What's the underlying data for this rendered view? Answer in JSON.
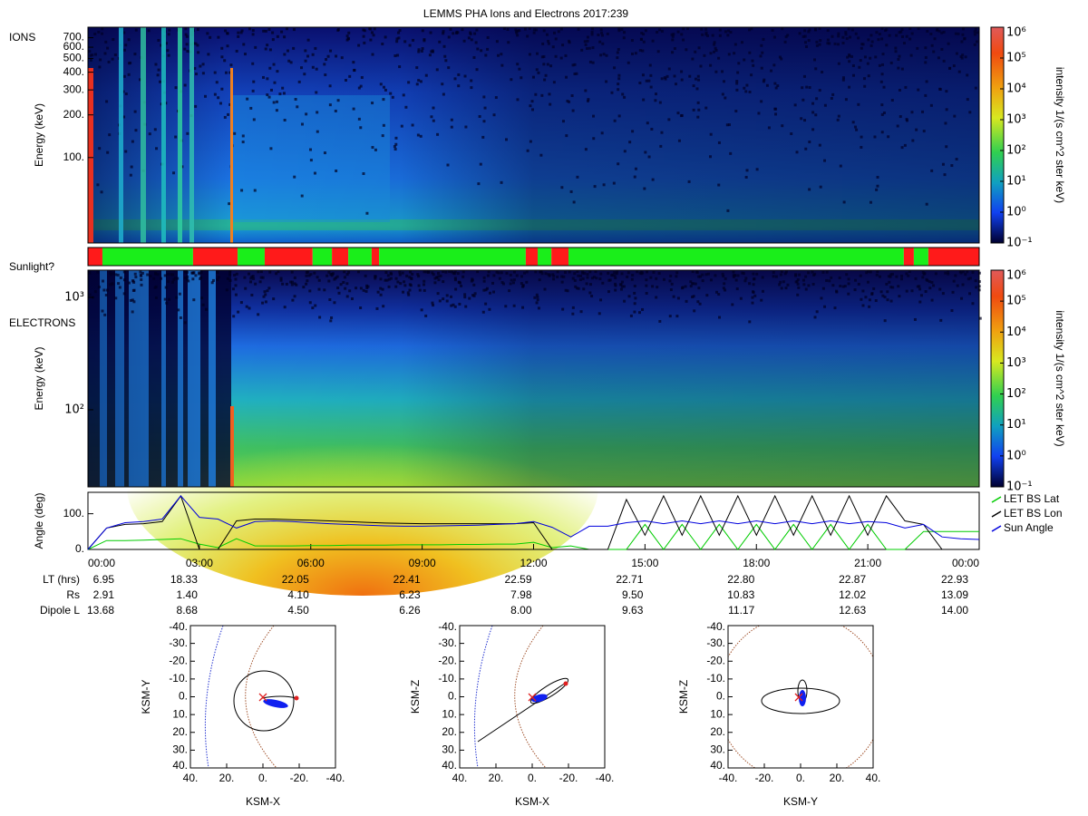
{
  "title": "LEMMS PHA Ions and Electrons  2017:239",
  "chart_data": [
    {
      "type": "heatmap",
      "annotation": "IONS",
      "y_label": "Energy (keV)",
      "ylog": true,
      "ylim": [
        25,
        830
      ],
      "yticks": [
        {
          "value": 100,
          "label": "100."
        },
        {
          "value": 200,
          "label": "200."
        },
        {
          "value": 300,
          "label": "300."
        },
        {
          "value": 400,
          "label": "400."
        },
        {
          "value": 500,
          "label": "500."
        },
        {
          "value": 600,
          "label": "600."
        },
        {
          "value": 700,
          "label": "700."
        }
      ],
      "colorbar": {
        "label": "intensity 1/(s cm^2 ster keV)",
        "zlog": true,
        "zlim": [
          0.1,
          1000000
        ],
        "zticks": [
          {
            "value": 0.1,
            "label": "10⁻¹"
          },
          {
            "value": 1,
            "label": "10⁰"
          },
          {
            "value": 10,
            "label": "10¹"
          },
          {
            "value": 100,
            "label": "10²"
          },
          {
            "value": 1000,
            "label": "10³"
          },
          {
            "value": 10000,
            "label": "10⁴"
          },
          {
            "value": 100000,
            "label": "10⁵"
          },
          {
            "value": 1000000,
            "label": "10⁶"
          }
        ]
      }
    },
    {
      "type": "timeline",
      "annotation": "Sunlight?",
      "segments": [
        {
          "start": 0,
          "end": 0.39,
          "color": "#ff1a1a"
        },
        {
          "start": 0.39,
          "end": 2.83,
          "color": "#1aee1a"
        },
        {
          "start": 2.83,
          "end": 4.03,
          "color": "#ff1a1a"
        },
        {
          "start": 4.03,
          "end": 4.76,
          "color": "#1aee1a"
        },
        {
          "start": 4.76,
          "end": 6.05,
          "color": "#ff1a1a"
        },
        {
          "start": 6.05,
          "end": 6.57,
          "color": "#1aee1a"
        },
        {
          "start": 6.57,
          "end": 7.01,
          "color": "#ff1a1a"
        },
        {
          "start": 7.01,
          "end": 7.64,
          "color": "#1aee1a"
        },
        {
          "start": 7.64,
          "end": 7.84,
          "color": "#ff1a1a"
        },
        {
          "start": 7.84,
          "end": 11.79,
          "color": "#1aee1a"
        },
        {
          "start": 11.79,
          "end": 12.11,
          "color": "#ff1a1a"
        },
        {
          "start": 12.11,
          "end": 12.48,
          "color": "#1aee1a"
        },
        {
          "start": 12.48,
          "end": 12.94,
          "color": "#ff1a1a"
        },
        {
          "start": 12.94,
          "end": 21.97,
          "color": "#1aee1a"
        },
        {
          "start": 21.97,
          "end": 22.24,
          "color": "#ff1a1a"
        },
        {
          "start": 22.24,
          "end": 22.63,
          "color": "#1aee1a"
        },
        {
          "start": 22.63,
          "end": 24,
          "color": "#ff1a1a"
        }
      ]
    },
    {
      "type": "heatmap",
      "annotation": "ELECTRONS",
      "y_label": "Energy (keV)",
      "ylog": true,
      "ylim": [
        20.6,
        1746
      ],
      "yticks": [
        {
          "value": 100,
          "label": "10²"
        },
        {
          "value": 1000,
          "label": "10³"
        }
      ],
      "colorbar": {
        "label": "intensity 1/(s cm^2 ster keV)",
        "zlog": true,
        "zlim": [
          0.1,
          1000000
        ],
        "zticks": [
          {
            "value": 0.1,
            "label": "10⁻¹"
          },
          {
            "value": 1,
            "label": "10⁰"
          },
          {
            "value": 10,
            "label": "10¹"
          },
          {
            "value": 100,
            "label": "10²"
          },
          {
            "value": 1000,
            "label": "10³"
          },
          {
            "value": 10000,
            "label": "10⁴"
          },
          {
            "value": 100000,
            "label": "10⁵"
          },
          {
            "value": 1000000,
            "label": "10⁶"
          }
        ]
      }
    },
    {
      "type": "line",
      "y_label": "Angle (deg)",
      "legend": "right",
      "xlim": [
        0,
        24
      ],
      "ylim": [
        0,
        160
      ],
      "xticks": [
        {
          "value": 0,
          "label": "00:00"
        },
        {
          "value": 3,
          "label": "03:00"
        },
        {
          "value": 6,
          "label": "06:00"
        },
        {
          "value": 9,
          "label": "09:00"
        },
        {
          "value": 12,
          "label": "12:00"
        },
        {
          "value": 15,
          "label": "15:00"
        },
        {
          "value": 18,
          "label": "18:00"
        },
        {
          "value": 21,
          "label": "21:00"
        },
        {
          "value": 24,
          "label": "00:00"
        }
      ],
      "yticks": [
        {
          "value": 0,
          "label": "0."
        },
        {
          "value": 100,
          "label": "100."
        }
      ],
      "x": [
        0,
        0.5,
        1,
        1.5,
        2,
        2.5,
        3,
        3.5,
        4,
        4.5,
        5,
        5.5,
        6,
        6.5,
        7,
        7.5,
        8,
        8.5,
        9,
        9.5,
        10,
        10.5,
        11,
        11.5,
        12,
        12.5,
        13,
        13.5,
        14,
        14.5,
        15,
        15.5,
        16,
        16.5,
        17,
        17.5,
        18,
        18.5,
        19,
        19.5,
        20,
        20.5,
        21,
        21.5,
        22,
        22.5,
        23,
        23.5,
        24
      ],
      "series": [
        {
          "name": "LET BS Lat",
          "color": "#00cc00",
          "values": [
            0,
            25,
            25,
            26,
            28,
            30,
            15,
            5,
            30,
            10,
            10,
            10,
            11,
            11,
            12,
            12,
            12,
            13,
            13,
            13,
            14,
            14,
            15,
            15,
            20,
            5,
            10,
            0,
            0,
            0,
            70,
            0,
            70,
            0,
            70,
            0,
            70,
            0,
            70,
            0,
            70,
            0,
            70,
            0,
            0,
            50,
            50,
            50,
            50
          ]
        },
        {
          "name": "LET BS Lon",
          "color": "#000000",
          "values": [
            0,
            60,
            70,
            72,
            78,
            150,
            0,
            0,
            80,
            85,
            85,
            83,
            82,
            80,
            78,
            76,
            74,
            73,
            72,
            72,
            72,
            72,
            72,
            72,
            75,
            0,
            0,
            0,
            0,
            140,
            40,
            150,
            40,
            150,
            40,
            150,
            40,
            150,
            40,
            150,
            40,
            150,
            40,
            150,
            80,
            70,
            0,
            0,
            0
          ]
        },
        {
          "name": "Sun Angle",
          "color": "#0000dd",
          "values": [
            0,
            60,
            75,
            78,
            85,
            150,
            90,
            85,
            60,
            78,
            80,
            78,
            75,
            72,
            70,
            68,
            66,
            65,
            65,
            66,
            67,
            68,
            70,
            72,
            78,
            62,
            35,
            65,
            65,
            75,
            80,
            72,
            80,
            72,
            80,
            72,
            80,
            72,
            80,
            72,
            80,
            72,
            78,
            75,
            60,
            70,
            35,
            30,
            28
          ]
        }
      ]
    }
  ],
  "ephemeris": {
    "rows": [
      {
        "label": "LT (hrs)",
        "values": [
          "6.95",
          "18.33",
          "22.05",
          "22.41",
          "22.59",
          "22.71",
          "22.80",
          "22.87",
          "22.93"
        ]
      },
      {
        "label": "Rs",
        "values": [
          "2.91",
          "1.40",
          "4.10",
          "6.23",
          "7.98",
          "9.50",
          "10.83",
          "12.02",
          "13.09"
        ]
      },
      {
        "label": "Dipole L",
        "values": [
          "13.68",
          "8.68",
          "4.50",
          "6.26",
          "8.00",
          "9.63",
          "11.17",
          "12.63",
          "14.00"
        ]
      }
    ]
  },
  "orbit_plots": [
    {
      "x_label": "KSM-X",
      "y_label": "KSM-Y",
      "xlim": [
        40,
        -40
      ],
      "ylim": [
        40,
        -40
      ],
      "xticks": [
        {
          "value": 40,
          "label": "40."
        },
        {
          "value": 20,
          "label": "20."
        },
        {
          "value": 0,
          "label": "0."
        },
        {
          "value": -20,
          "label": "-20."
        },
        {
          "value": -40,
          "label": "-40."
        }
      ],
      "yticks": [
        {
          "value": -40,
          "label": "-40."
        },
        {
          "value": -30,
          "label": "-30."
        },
        {
          "value": -20,
          "label": "-20."
        },
        {
          "value": -10,
          "label": "-10."
        },
        {
          "value": 0,
          "label": "0."
        },
        {
          "value": 10,
          "label": "10."
        },
        {
          "value": 20,
          "label": "20."
        },
        {
          "value": 30,
          "label": "30."
        },
        {
          "value": 40,
          "label": "40."
        }
      ]
    },
    {
      "x_label": "KSM-X",
      "y_label": "KSM-Z",
      "xlim": [
        40,
        -40
      ],
      "ylim": [
        40,
        -40
      ],
      "xticks": [
        {
          "value": 40,
          "label": "40."
        },
        {
          "value": 20,
          "label": "20."
        },
        {
          "value": 0,
          "label": "0."
        },
        {
          "value": -20,
          "label": "-20."
        },
        {
          "value": -40,
          "label": "-40."
        }
      ],
      "yticks": [
        {
          "value": -40,
          "label": "-40."
        },
        {
          "value": -30,
          "label": "-30."
        },
        {
          "value": -20,
          "label": "-20."
        },
        {
          "value": -10,
          "label": "-10."
        },
        {
          "value": 0,
          "label": "0."
        },
        {
          "value": 10,
          "label": "10."
        },
        {
          "value": 20,
          "label": "20."
        },
        {
          "value": 30,
          "label": "30."
        },
        {
          "value": 40,
          "label": "40."
        }
      ]
    },
    {
      "x_label": "KSM-Y",
      "y_label": "KSM-Z",
      "xlim": [
        -40,
        40
      ],
      "ylim": [
        40,
        -40
      ],
      "xticks": [
        {
          "value": -40,
          "label": "-40."
        },
        {
          "value": -20,
          "label": "-20."
        },
        {
          "value": 0,
          "label": "0."
        },
        {
          "value": 20,
          "label": "20."
        },
        {
          "value": 40,
          "label": "40."
        }
      ],
      "yticks": [
        {
          "value": -40,
          "label": "-40."
        },
        {
          "value": -30,
          "label": "-30."
        },
        {
          "value": -20,
          "label": "-20."
        },
        {
          "value": -10,
          "label": "-10."
        },
        {
          "value": 0,
          "label": "0."
        },
        {
          "value": 10,
          "label": "10."
        },
        {
          "value": 20,
          "label": "20."
        },
        {
          "value": 30,
          "label": "30."
        },
        {
          "value": 40,
          "label": "40."
        }
      ]
    }
  ]
}
